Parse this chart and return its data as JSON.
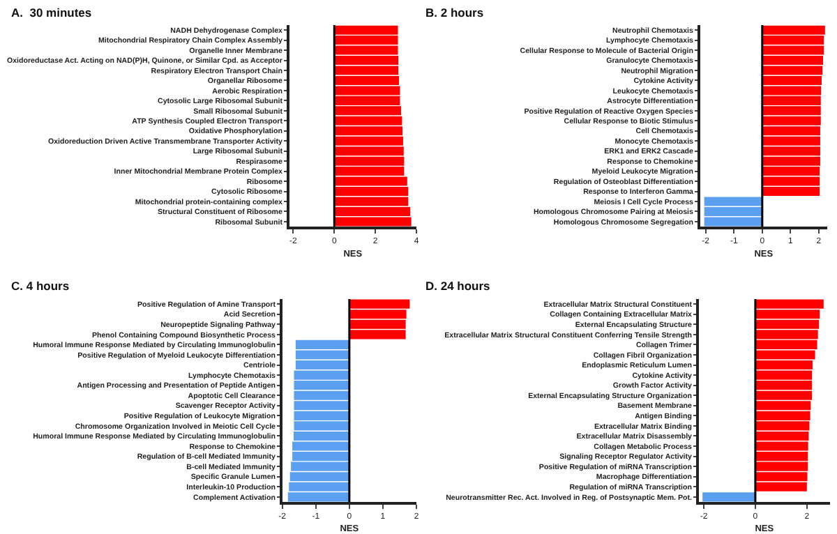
{
  "chart_data": [
    {
      "type": "bar",
      "orientation": "horizontal",
      "title": "A.  30 minutes",
      "xlabel": "NES",
      "xlim": [
        -2.2,
        4
      ],
      "xticks": [
        -2,
        0,
        2,
        4
      ],
      "grid": false,
      "ref_lines": [
        {
          "axis": "x",
          "value": 0,
          "color": "#000000"
        }
      ],
      "categories": [
        "NADH Dehydrogenase Complex",
        "Mitochondrial Respiratory Chain Complex Assembly",
        "Organelle Inner Membrane",
        "Oxidoreductase Act. Acting on NAD(P)H, Quinone, or Similar Cpd. as Acceptor",
        "Respiratory Electron Transport Chain",
        "Organellar Ribosome",
        "Aerobic Respiration",
        "Cytosolic Large Ribosomal Subunit",
        "Small Ribosomal Subunit",
        "ATP Synthesis Coupled Electron Transport",
        "Oxidative Phosphorylation",
        "Oxidoreduction Driven Active Transmembrane Transporter Activity",
        "Large Ribosomal Subunit",
        "Respirasome",
        "Inner Mitochondrial Membrane Protein Complex",
        "Ribosome",
        "Cytosolic Ribosome",
        "Mitochondrial protein-containing complex",
        "Structural Constituent of Ribosome",
        "Ribosomal Subunit"
      ],
      "values": [
        3.1,
        3.1,
        3.1,
        3.12,
        3.12,
        3.15,
        3.2,
        3.2,
        3.25,
        3.3,
        3.32,
        3.35,
        3.38,
        3.4,
        3.4,
        3.55,
        3.6,
        3.6,
        3.7,
        3.75
      ],
      "colors": [
        "#ff0000",
        "#ff0000",
        "#ff0000",
        "#ff0000",
        "#ff0000",
        "#ff0000",
        "#ff0000",
        "#ff0000",
        "#ff0000",
        "#ff0000",
        "#ff0000",
        "#ff0000",
        "#ff0000",
        "#ff0000",
        "#ff0000",
        "#ff0000",
        "#ff0000",
        "#ff0000",
        "#ff0000",
        "#ff0000"
      ]
    },
    {
      "type": "bar",
      "orientation": "horizontal",
      "title": "B. 2 hours",
      "xlabel": "NES",
      "xlim": [
        -2.2,
        2.3
      ],
      "xticks": [
        -2,
        -1,
        0,
        1,
        2
      ],
      "grid": false,
      "ref_lines": [
        {
          "axis": "x",
          "value": 0,
          "color": "#000000"
        }
      ],
      "categories": [
        "Neutrophil Chemotaxis",
        "Lymphocyte Chemotaxis",
        "Cellular Response to Molecule of Bacterial Origin",
        "Granulocyte Chemotaxis",
        "Neutrophil Migration",
        "Cytokine Activity",
        "Leukocyte Chemotaxis",
        "Astrocyte Differentiation",
        "Positive Regulation of Reactive Oxygen Species",
        "Cellular Response to Biotic Stimulus",
        "Cell Chemotaxis",
        "Monocyte Chemotaxis",
        "ERK1 and ERK2 Cascade",
        "Response to Chemokine",
        "Myeloid Leukocyte Migration",
        "Regulation of Osteoblast Differentiation",
        "Response to Interferon Gamma",
        "Meiosis I Cell Cycle Process",
        "Homologous Chromosome Pairing at Meiosis",
        "Homologous Chromosome Segregation"
      ],
      "values": [
        2.22,
        2.18,
        2.18,
        2.15,
        2.13,
        2.1,
        2.08,
        2.07,
        2.07,
        2.07,
        2.05,
        2.05,
        2.05,
        2.05,
        2.03,
        2.03,
        2.03,
        -2.05,
        -2.05,
        -2.05
      ],
      "colors": [
        "#ff0000",
        "#ff0000",
        "#ff0000",
        "#ff0000",
        "#ff0000",
        "#ff0000",
        "#ff0000",
        "#ff0000",
        "#ff0000",
        "#ff0000",
        "#ff0000",
        "#ff0000",
        "#ff0000",
        "#ff0000",
        "#ff0000",
        "#ff0000",
        "#ff0000",
        "#5b9ff0",
        "#5b9ff0",
        "#5b9ff0"
      ]
    },
    {
      "type": "bar",
      "orientation": "horizontal",
      "title": "C. 4 hours",
      "xlabel": "NES",
      "xlim": [
        -2,
        2
      ],
      "xticks": [
        -2,
        -1,
        0,
        1,
        2
      ],
      "grid": false,
      "ref_lines": [
        {
          "axis": "x",
          "value": 0,
          "color": "#000000"
        }
      ],
      "categories": [
        "Positive Regulation of Amine Transport",
        "Acid Secretion",
        "Neuropeptide Signaling Pathway",
        "Phenol Containing Compound Biosynthetic Process",
        "Humoral Immune Response Mediated by Circulating Immunoglobulin",
        "Positive Regulation of Myeloid Leukocyte Differentiation",
        "Centriole",
        "Lymphocyte Chemotaxis",
        "Antigen Processing and Presentation of Peptide Antigen",
        "Apoptotic Cell Clearance",
        "Scavenger Receptor Activity",
        "Positive Regulation of Leukocyte Migration",
        "Chromosome Organization Involved in Meiotic Cell Cycle",
        "Humoral Immune Response Mediated by Circulating Immunoglobulin",
        "Response to Chemokine",
        "Regulation of B-cell Mediated Immunity",
        "B-cell Mediated Immunity",
        "Specific Granule Lumen",
        "Interleukin-10 Production",
        "Complement Activation"
      ],
      "values": [
        1.8,
        1.7,
        1.68,
        1.68,
        -1.6,
        -1.6,
        -1.6,
        -1.65,
        -1.65,
        -1.65,
        -1.65,
        -1.65,
        -1.65,
        -1.66,
        -1.7,
        -1.7,
        -1.74,
        -1.77,
        -1.8,
        -1.83
      ],
      "colors": [
        "#ff0000",
        "#ff0000",
        "#ff0000",
        "#ff0000",
        "#5b9ff0",
        "#5b9ff0",
        "#5b9ff0",
        "#5b9ff0",
        "#5b9ff0",
        "#5b9ff0",
        "#5b9ff0",
        "#5b9ff0",
        "#5b9ff0",
        "#5b9ff0",
        "#5b9ff0",
        "#5b9ff0",
        "#5b9ff0",
        "#5b9ff0",
        "#5b9ff0",
        "#5b9ff0"
      ]
    },
    {
      "type": "bar",
      "orientation": "horizontal",
      "title": "D. 24 hours",
      "xlabel": "NES",
      "xlim": [
        -2.2,
        2.9
      ],
      "xticks": [
        -2,
        0,
        2
      ],
      "grid": false,
      "ref_lines": [
        {
          "axis": "x",
          "value": 0,
          "color": "#000000"
        }
      ],
      "categories": [
        "Extracellular Matrix Structural Constituent",
        "Collagen Containing Extracellular Matrix",
        "External Encapsulating Structure",
        "Extracellular Matrix Structural Constituent Conferring Tensile Strength",
        "Collagen Trimer",
        "Collagen Fibril Organization",
        "Endoplasmic Reticulum Lumen",
        "Cytokine Activity",
        "Growth Factor Activity",
        "External Encapsulating Structure Organization",
        "Basement Membrane",
        "Antigen Binding",
        "Extracellular Matrix Binding",
        "Extracellular Matrix Disassembly",
        "Collagen Metabolic Process",
        "Signaling Receptor Regulator Activity",
        "Positive Regulation of miRNA Transcription",
        "Macrophage Differentiation",
        "Regulation of miRNA Transcription",
        "Neurotransmitter Rec. Act. Involved in Reg. of Postsynaptic Mem. Pot."
      ],
      "values": [
        2.65,
        2.5,
        2.47,
        2.43,
        2.4,
        2.32,
        2.22,
        2.2,
        2.2,
        2.2,
        2.15,
        2.13,
        2.1,
        2.07,
        2.05,
        2.04,
        2.04,
        2.02,
        2.0,
        -2.05
      ],
      "colors": [
        "#ff0000",
        "#ff0000",
        "#ff0000",
        "#ff0000",
        "#ff0000",
        "#ff0000",
        "#ff0000",
        "#ff0000",
        "#ff0000",
        "#ff0000",
        "#ff0000",
        "#ff0000",
        "#ff0000",
        "#ff0000",
        "#ff0000",
        "#ff0000",
        "#ff0000",
        "#ff0000",
        "#ff0000",
        "#5b9ff0"
      ]
    }
  ]
}
